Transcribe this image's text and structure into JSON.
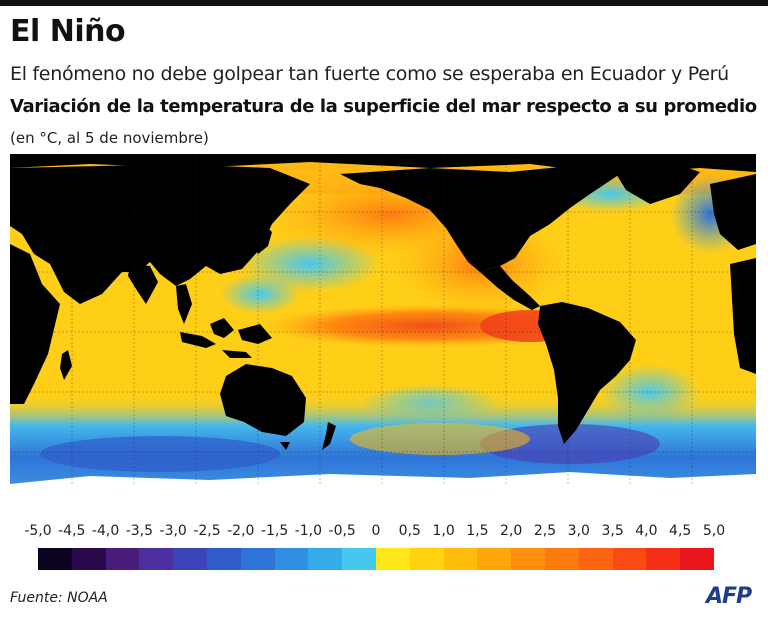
{
  "title": "El Niño",
  "subtitle": "El fenómeno no debe golpear tan fuerte como se esperaba en Ecuador y Perú",
  "heading": "Variación de la temperatura de la superficie del mar respecto a su promedio",
  "units": "(en °C, al 5 de noviembre)",
  "legend": {
    "ticks": [
      "-5,0",
      "-4,5",
      "-4,0",
      "-3,5",
      "-3,0",
      "-2,5",
      "-2,0",
      "-1,5",
      "-1,0",
      "-0,5",
      "0",
      "0,5",
      "1,0",
      "1,5",
      "2,0",
      "2,5",
      "3,0",
      "3,5",
      "4,0",
      "4,5",
      "5,0"
    ],
    "colors": [
      "#0c0420",
      "#2a0a4a",
      "#4a1c7a",
      "#4b2fa0",
      "#3b44b8",
      "#2f5cc8",
      "#2e74d8",
      "#2f8fe2",
      "#36abea",
      "#45c7ee",
      "#ffe81a",
      "#ffd30f",
      "#ffbc0a",
      "#ffa50a",
      "#ff8f0a",
      "#ff7a0c",
      "#ff6410",
      "#fc4a14",
      "#f52e18",
      "#e8161c"
    ]
  },
  "source": "Fuente: NOAA",
  "logo": "AFP"
}
